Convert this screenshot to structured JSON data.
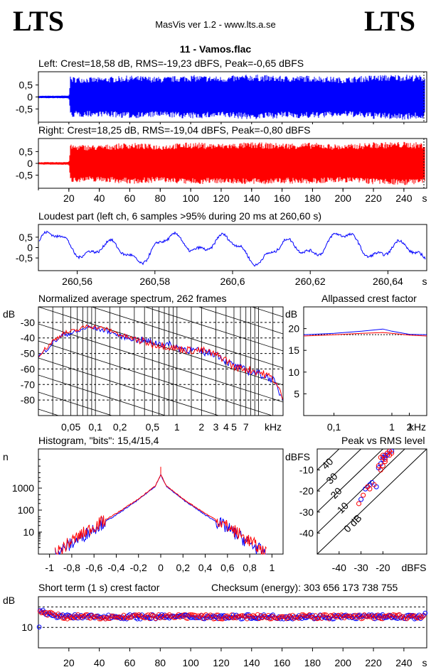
{
  "header": {
    "logo_left": "LTS",
    "logo_right": "LTS",
    "app_title": "MasVis ver 1.2 - www.lts.a.se",
    "file_name": "11 - Vamos.flac"
  },
  "colors": {
    "left": "#0000ff",
    "right": "#ff0000",
    "grid": "#000000"
  },
  "chart_data": [
    {
      "id": "left",
      "type": "line",
      "title": "Left: Crest=18,58 dB, RMS=-19,23 dBFS, Peak=-0,65 dBFS",
      "ylim": [
        -1,
        1
      ],
      "xlim": [
        0,
        255
      ],
      "yticks": [
        0.5,
        0,
        -0.5
      ],
      "ytick_labels": [
        "0,5",
        "0",
        "-0,5"
      ],
      "envelope": [
        [
          0,
          0.05
        ],
        [
          20,
          0.06
        ],
        [
          21,
          0.85
        ],
        [
          40,
          0.82
        ],
        [
          60,
          0.9
        ],
        [
          80,
          0.84
        ],
        [
          100,
          0.92
        ],
        [
          120,
          0.86
        ],
        [
          140,
          0.95
        ],
        [
          160,
          0.88
        ],
        [
          180,
          0.9
        ],
        [
          200,
          0.82
        ],
        [
          220,
          0.92
        ],
        [
          240,
          0.95
        ],
        [
          255,
          0.9
        ]
      ]
    },
    {
      "id": "right",
      "type": "line",
      "title": "Right: Crest=18,25 dB, RMS=-19,04 dBFS, Peak=-0,80 dBFS",
      "ylim": [
        -1,
        1
      ],
      "xlim": [
        0,
        255
      ],
      "xticks": [
        20,
        40,
        60,
        80,
        100,
        120,
        140,
        160,
        180,
        200,
        220,
        240
      ],
      "xtick_labels": [
        "20",
        "40",
        "60",
        "80",
        "100",
        "120",
        "140",
        "160",
        "180",
        "200",
        "220",
        "240"
      ],
      "xunit": "s",
      "yticks": [
        0.5,
        0,
        -0.5
      ],
      "ytick_labels": [
        "0,5",
        "0",
        "-0,5"
      ],
      "envelope": [
        [
          0,
          0.05
        ],
        [
          20,
          0.06
        ],
        [
          21,
          0.8
        ],
        [
          40,
          0.78
        ],
        [
          60,
          0.88
        ],
        [
          80,
          0.8
        ],
        [
          100,
          0.9
        ],
        [
          120,
          0.84
        ],
        [
          140,
          0.9
        ],
        [
          160,
          0.86
        ],
        [
          180,
          0.88
        ],
        [
          200,
          0.8
        ],
        [
          220,
          0.9
        ],
        [
          240,
          0.92
        ],
        [
          255,
          0.88
        ]
      ]
    },
    {
      "id": "loudest",
      "type": "line",
      "title": "Loudest part (left  ch, 6 samples >95% during 20 ms at 260,60 s)",
      "xlim": [
        260.55,
        260.65
      ],
      "ylim": [
        -1,
        1
      ],
      "xticks": [
        260.56,
        260.58,
        260.6,
        260.62,
        260.64
      ],
      "xtick_labels": [
        "260,56",
        "260,58",
        "260,6",
        "260,62",
        "260,64"
      ],
      "xunit": "s",
      "yticks": [
        0.5,
        0,
        -0.5
      ],
      "ytick_labels": [
        "0,5",
        "0",
        "-0,5"
      ]
    },
    {
      "id": "spectrum",
      "type": "line",
      "title": "Normalized average spectrum, 262 frames",
      "ylabel": "dB",
      "xunit": "kHz",
      "xscale": "log",
      "xlim": [
        0.02,
        20
      ],
      "ylim": [
        -90,
        -20
      ],
      "yticks": [
        -30,
        -40,
        -50,
        -60,
        -70,
        -80
      ],
      "ytick_labels": [
        "-30",
        "-40",
        "-50",
        "-60",
        "-70",
        "-80"
      ],
      "xticks": [
        0.05,
        0.1,
        0.2,
        0.5,
        1,
        2,
        3,
        4,
        5,
        7
      ],
      "xtick_labels": [
        "0,05",
        "0,1",
        "0,2",
        "0,5",
        "1",
        "2",
        "3",
        "4",
        "5",
        "7"
      ],
      "series": [
        {
          "name": "",
          "color": "#0000ff",
          "x": [
            0.02,
            0.03,
            0.04,
            0.06,
            0.08,
            0.1,
            0.15,
            0.2,
            0.3,
            0.5,
            0.7,
            1,
            1.5,
            2,
            3,
            4,
            5,
            7,
            10,
            15,
            20
          ],
          "y": [
            -52,
            -43,
            -38,
            -36,
            -33,
            -34,
            -36,
            -39,
            -41,
            -43,
            -44,
            -46,
            -48,
            -49,
            -50,
            -55,
            -58,
            -61,
            -63,
            -67,
            -80
          ]
        },
        {
          "name": "",
          "color": "#ff0000",
          "x": [
            0.02,
            0.03,
            0.04,
            0.06,
            0.08,
            0.1,
            0.15,
            0.2,
            0.3,
            0.5,
            0.7,
            1,
            1.5,
            2,
            3,
            4,
            5,
            7,
            10,
            15,
            20
          ],
          "y": [
            -51,
            -42,
            -37,
            -35,
            -32,
            -33,
            -35,
            -38,
            -41,
            -44,
            -45,
            -47,
            -48,
            -48,
            -51,
            -54,
            -59,
            -60,
            -62,
            -66,
            -79
          ]
        }
      ]
    },
    {
      "id": "allpass",
      "type": "line",
      "title": "Allpassed crest factor",
      "ylabel": "dB",
      "xunit": "kHz",
      "xscale": "log",
      "xlim": [
        0.03,
        4
      ],
      "ylim": [
        0,
        25
      ],
      "yticks": [
        20,
        15,
        10,
        5
      ],
      "ytick_labels": [
        "20",
        "15",
        "10",
        "5"
      ],
      "xticks": [
        0.1,
        1,
        2
      ],
      "xtick_labels": [
        "0,1",
        "1",
        "2"
      ],
      "reference_db": 18.6,
      "series": [
        {
          "name": "",
          "color": "#0000ff",
          "x": [
            0.03,
            0.1,
            0.3,
            0.7,
            1,
            2,
            4
          ],
          "y": [
            18.6,
            18.9,
            19.4,
            19.9,
            19.4,
            18.7,
            18.6
          ]
        },
        {
          "name": "",
          "color": "#ff0000",
          "x": [
            0.03,
            0.1,
            0.3,
            0.7,
            1,
            2,
            4
          ],
          "y": [
            18.3,
            18.6,
            18.9,
            19.1,
            18.9,
            18.5,
            18.3
          ]
        }
      ]
    },
    {
      "id": "histogram",
      "type": "line",
      "title": "Histogram, \"bits\": 15,4/15,4",
      "ylabel": "n",
      "yscale": "log",
      "xlim": [
        -1.1,
        1.1
      ],
      "ylim": [
        1,
        60000
      ],
      "yticks": [
        1000,
        100,
        10
      ],
      "ytick_labels": [
        "1000",
        "100",
        "10"
      ],
      "xticks": [
        -1,
        -0.8,
        -0.6,
        -0.4,
        -0.2,
        0,
        0.2,
        0.4,
        0.6,
        0.8,
        1
      ],
      "xtick_labels": [
        "-1",
        "-0,8",
        "-0,6",
        "-0,4",
        "-0,2",
        "0",
        "0,2",
        "0,4",
        "0,6",
        "0,8",
        "1"
      ],
      "series": [
        {
          "name": "",
          "color": "#0000ff",
          "x": [
            -0.95,
            -0.8,
            -0.6,
            -0.4,
            -0.2,
            -0.05,
            0,
            0.05,
            0.2,
            0.4,
            0.6,
            0.8,
            0.95
          ],
          "y": [
            1,
            3,
            15,
            60,
            300,
            1200,
            4000,
            1200,
            300,
            60,
            15,
            3,
            1
          ]
        },
        {
          "name": "",
          "color": "#ff0000",
          "x": [
            -0.95,
            -0.8,
            -0.6,
            -0.4,
            -0.2,
            -0.05,
            0,
            0.05,
            0.2,
            0.4,
            0.6,
            0.8,
            0.95
          ],
          "y": [
            1,
            4,
            18,
            70,
            320,
            1250,
            4200,
            1250,
            320,
            70,
            18,
            4,
            1
          ]
        }
      ]
    },
    {
      "id": "peak_rms",
      "type": "scatter",
      "title": "Peak vs RMS level",
      "ylabel": "dBFS",
      "xunit": "dBFS",
      "xlim": [
        -50,
        0
      ],
      "ylim": [
        -50,
        0
      ],
      "xticks": [
        -40,
        -30,
        -20
      ],
      "xtick_labels": [
        "-40",
        "-30",
        "-20"
      ],
      "yticks": [
        -10,
        -20,
        -30,
        -40
      ],
      "ytick_labels": [
        "-10",
        "-20",
        "-30",
        "-40"
      ],
      "crest_lines": [
        0,
        10,
        20,
        30,
        40
      ],
      "crest_labels": [
        "0 dB",
        "10",
        "20",
        "30",
        "40"
      ],
      "series": [
        {
          "name": "",
          "color": "#0000ff",
          "points": [
            [
              -19,
              -3
            ],
            [
              -18,
              -2
            ],
            [
              -17,
              -1
            ],
            [
              -20,
              -5
            ],
            [
              -19,
              -4
            ],
            [
              -18,
              -3
            ],
            [
              -21,
              -7
            ],
            [
              -22,
              -9
            ],
            [
              -23,
              -18
            ],
            [
              -27,
              -18
            ],
            [
              -28,
              -19
            ],
            [
              -30,
              -24
            ],
            [
              -25,
              -16
            ],
            [
              -26,
              -17
            ],
            [
              -20,
              -4
            ],
            [
              -16,
              -1
            ]
          ]
        },
        {
          "name": "",
          "color": "#ff0000",
          "points": [
            [
              -18,
              -2
            ],
            [
              -17,
              -3
            ],
            [
              -19,
              -6
            ],
            [
              -20,
              -8
            ],
            [
              -21,
              -10
            ],
            [
              -22,
              -8
            ],
            [
              -24,
              -17
            ],
            [
              -26,
              -19
            ],
            [
              -29,
              -22
            ],
            [
              -31,
              -26
            ],
            [
              -27,
              -18
            ],
            [
              -17,
              -1
            ],
            [
              -16,
              -2
            ],
            [
              -19,
              -5
            ],
            [
              -20,
              -3
            ],
            [
              -21,
              -4
            ]
          ]
        }
      ]
    },
    {
      "id": "short_term_crest",
      "type": "scatter",
      "title": "Short term (1 s) crest factor",
      "annotation": "Checksum (energy):   303 656 173 738 755",
      "ylabel": "dB",
      "xlim": [
        0,
        255
      ],
      "ylim": [
        0,
        25
      ],
      "yticks": [
        10
      ],
      "ytick_labels": [
        "10"
      ],
      "dashed_lines": [
        10,
        20
      ],
      "xticks": [
        20,
        40,
        60,
        80,
        100,
        120,
        140,
        160,
        180,
        200,
        220,
        240
      ],
      "xtick_labels": [
        "20",
        "40",
        "60",
        "80",
        "100",
        "120",
        "140",
        "160",
        "180",
        "200",
        "220",
        "240"
      ],
      "xunit": "s",
      "baseline_db": 15.2
    }
  ]
}
